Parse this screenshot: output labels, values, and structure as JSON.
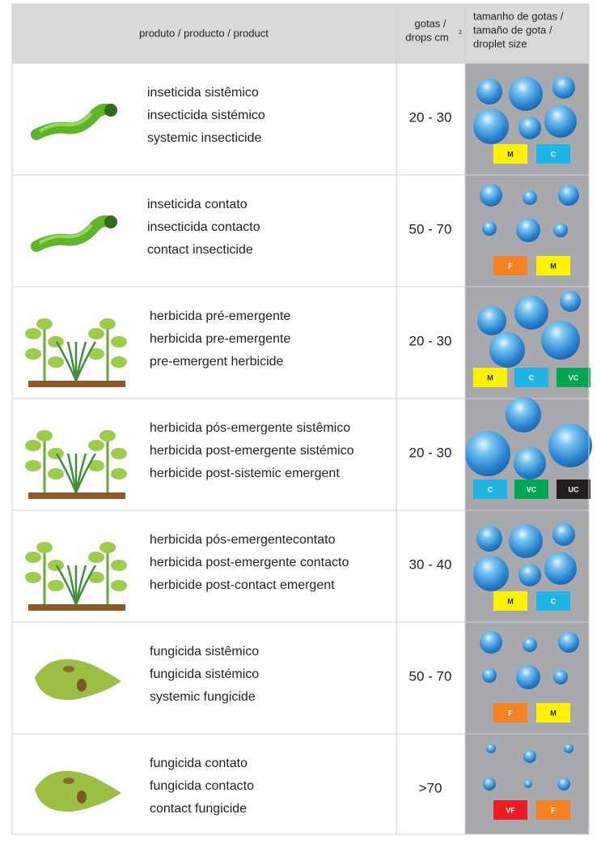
{
  "header": {
    "product": "produto / producto / product",
    "drops": [
      "gotas /",
      "drops cm"
    ],
    "drops_sup": "2",
    "size": [
      "tamanho de gotas /",
      "tamaño de gota /",
      "droplet size"
    ]
  },
  "rows": [
    {
      "names": [
        "inseticida sistêmico",
        "insecticida sistémico",
        "systemic insecticide"
      ],
      "drops": "20 - 30",
      "sizes": [
        {
          "label": "M",
          "color": "#fff200"
        },
        {
          "label": "C",
          "color": "#1fb4e6"
        }
      ]
    },
    {
      "names": [
        "inseticida contato",
        "insecticida contacto",
        "contact insecticide"
      ],
      "drops": "50 - 70",
      "sizes": [
        {
          "label": "F",
          "color": "#f58220"
        },
        {
          "label": "M",
          "color": "#fff200"
        }
      ]
    },
    {
      "names": [
        "herbicida pré-emergente",
        "herbicida pre-emergente",
        "pre-emergent herbicide"
      ],
      "drops": "20 - 30",
      "sizes": [
        {
          "label": "M",
          "color": "#fff200"
        },
        {
          "label": "C",
          "color": "#1fb4e6"
        },
        {
          "label": "VC",
          "color": "#00a651"
        }
      ]
    },
    {
      "names": [
        "herbicida pós-emergente sistêmico",
        "herbicida post-emergente sistémico",
        "herbicide post-sistemic emergent"
      ],
      "drops": "20 - 30",
      "sizes": [
        {
          "label": "C",
          "color": "#1fb4e6"
        },
        {
          "label": "VC",
          "color": "#00a651"
        },
        {
          "label": "UC",
          "color": "#231f20"
        }
      ]
    },
    {
      "names": [
        "herbicida pós-emergentecontato",
        "herbicida post-emergente contacto",
        "herbicide post-contact emergent"
      ],
      "drops": "30 - 40",
      "sizes": [
        {
          "label": "M",
          "color": "#fff200"
        },
        {
          "label": "C",
          "color": "#1fb4e6"
        }
      ]
    },
    {
      "names": [
        "fungicida sistêmico",
        "fungicida sistémico",
        "systemic fungicide"
      ],
      "drops": "50 - 70",
      "sizes": [
        {
          "label": "F",
          "color": "#f58220"
        },
        {
          "label": "M",
          "color": "#fff200"
        }
      ]
    },
    {
      "names": [
        "fungicida contato",
        "fungicida contacto",
        "contact fungicide"
      ],
      "drops": ">70",
      "sizes": [
        {
          "label": "VF",
          "color": "#ed1c24"
        },
        {
          "label": "F",
          "color": "#f58220"
        }
      ]
    }
  ]
}
